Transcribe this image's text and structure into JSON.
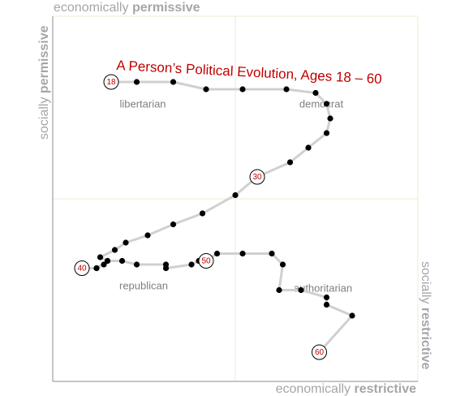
{
  "chart_data": {
    "type": "line",
    "title": "A Person’s Political Evolution, Ages 18 – 60",
    "axis_labels": {
      "top": [
        "economically",
        "permissive"
      ],
      "bottom": [
        "economically",
        "restrictive"
      ],
      "left": [
        "socially",
        "permissive"
      ],
      "right": [
        "socially",
        "restrictive"
      ]
    },
    "annotations": [
      "libertarian",
      "democrat",
      "republican",
      "authoritarian"
    ],
    "xlim": [
      0,
      100
    ],
    "ylim": [
      0,
      100
    ],
    "x": [
      16,
      23,
      33,
      42,
      52,
      64,
      72,
      75,
      76,
      75,
      70,
      65,
      56,
      50,
      41,
      33,
      26,
      20,
      17,
      13,
      15,
      12,
      8,
      12,
      14,
      15,
      19,
      23,
      31,
      31,
      38,
      40,
      42,
      45,
      52,
      60,
      63,
      62,
      68,
      75,
      75,
      82,
      73
    ],
    "series": [
      {
        "color": "#d0d0d0",
        "values": [
          82,
          82,
          82,
          80,
          80,
          80,
          79,
          76,
          72,
          68,
          64,
          60,
          56,
          51,
          46,
          43,
          40,
          38,
          36,
          34,
          33,
          31,
          31,
          31,
          32,
          33,
          33,
          32,
          32,
          31,
          32,
          33,
          33,
          35,
          35,
          35,
          32,
          25,
          25,
          23,
          21,
          18,
          8
        ],
        "point_labels": [
          "18",
          null,
          null,
          null,
          null,
          null,
          null,
          null,
          null,
          null,
          null,
          null,
          "30",
          null,
          null,
          null,
          null,
          null,
          null,
          null,
          null,
          null,
          "40",
          null,
          null,
          null,
          null,
          null,
          null,
          null,
          null,
          null,
          "50",
          null,
          null,
          null,
          null,
          null,
          null,
          null,
          null,
          null,
          "60"
        ]
      }
    ]
  }
}
